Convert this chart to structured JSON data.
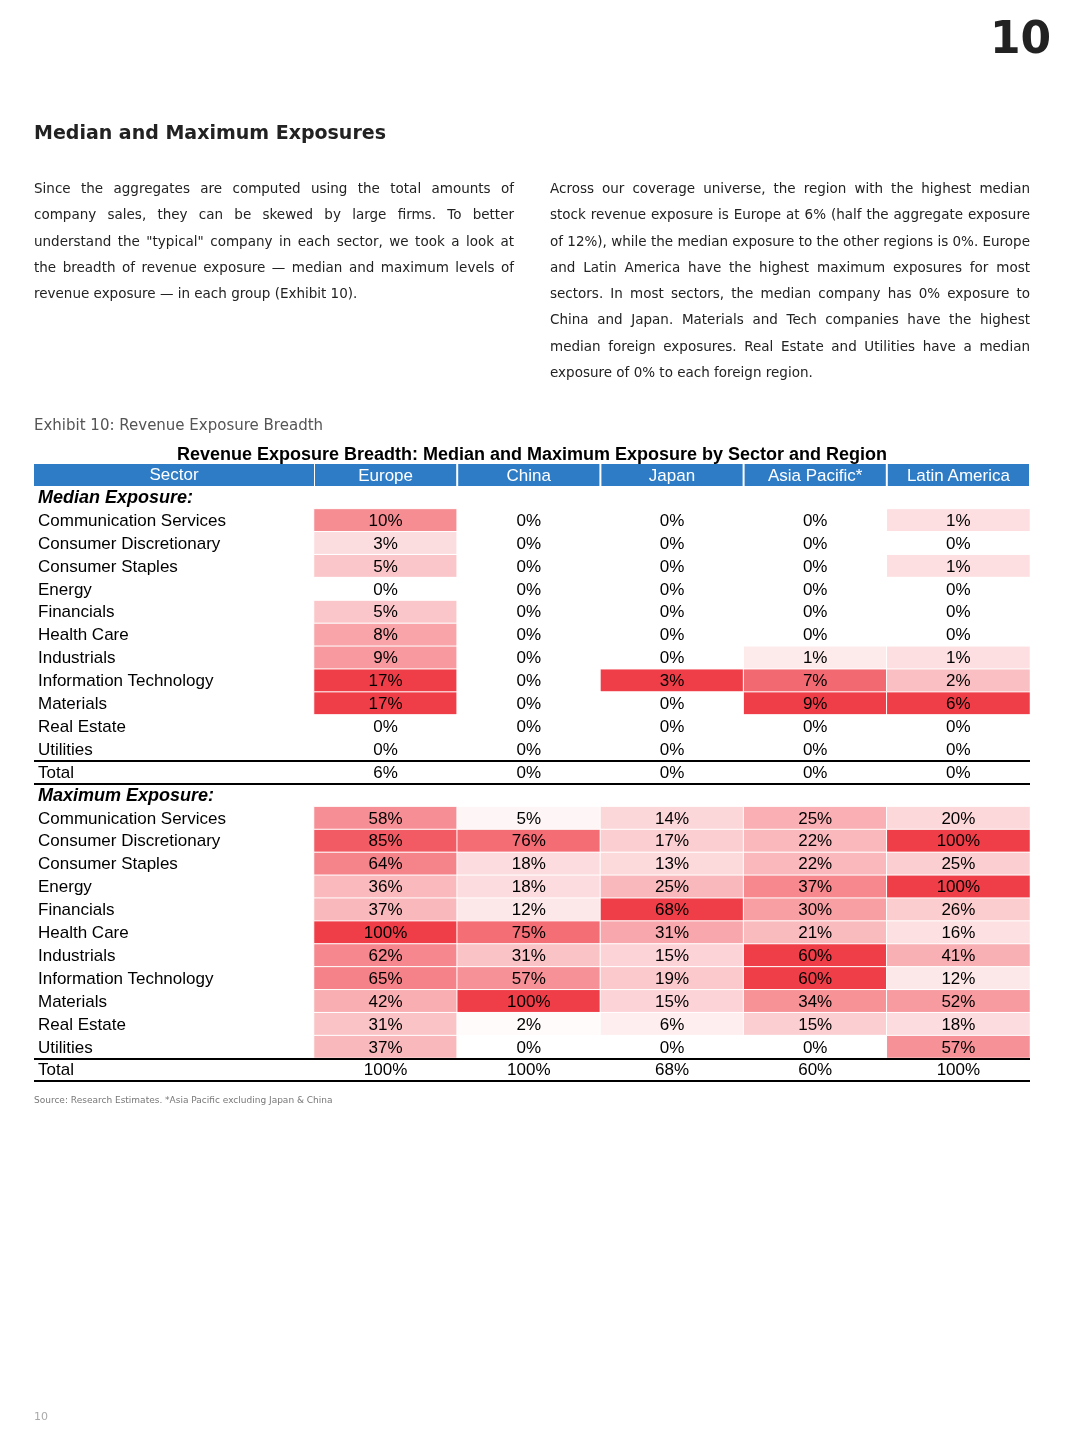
{
  "chart_data": {
    "type": "heatmap",
    "title": "Revenue Exposure Breadth: Median and Maximum Exposure by Sector and Region",
    "ylabel": "Sector",
    "annotations": [
      "Median and Maximum Exposures",
      "Since the aggregates are computed using the total amounts of company sales, they can be skewed by large firms. To better understand the \"typical\" company in each sector, we took a look at the breadth of revenue exposure — median and maximum levels of revenue exposure — in each group (Exhibit 10).",
      "Across our coverage universe, the region with the highest median stock revenue exposure is Europe at 6% (half the aggregate exposure of 12%), while the median exposure to the other regions is 0%. Europe and Latin America have the highest maximum exposures for most sectors. In most sectors, the median company has 0% exposure to China and Japan. Materials and Tech companies have the highest median foreign exposures. Real Estate and Utilities have a median exposure of 0% to each foreign region.",
      "Exhibit 10: Revenue Exposure Breadth",
      "Source: Research Estimates. *Asia Pacific excluding Japan & China",
      "10",
      "10"
    ],
    "categories": [
      "Europe",
      "China",
      "Japan",
      "Asia Pacific*",
      "Latin America"
    ],
    "y_categories": [
      "Median Exposure:",
      "Communication Services",
      "Consumer Discretionary",
      "Consumer Staples",
      "Energy",
      "Financials",
      "Health Care",
      "Industrials",
      "Information Technology",
      "Materials",
      "Real Estate",
      "Utilities",
      "Total",
      "Maximum Exposure:",
      "Communication Services",
      "Consumer Discretionary",
      "Consumer Staples",
      "Energy",
      "Financials",
      "Health Care",
      "Industrials",
      "Information Technology",
      "Materials",
      "Real Estate",
      "Utilities",
      "Total"
    ],
    "cells": [
      [
        null,
        null,
        null,
        null,
        null
      ],
      [
        10,
        0,
        0,
        0,
        1
      ],
      [
        3,
        0,
        0,
        0,
        0
      ],
      [
        5,
        0,
        0,
        0,
        1
      ],
      [
        0,
        0,
        0,
        0,
        0
      ],
      [
        5,
        0,
        0,
        0,
        0
      ],
      [
        8,
        0,
        0,
        0,
        0
      ],
      [
        9,
        0,
        0,
        1,
        1
      ],
      [
        17,
        0,
        3,
        7,
        2
      ],
      [
        17,
        0,
        0,
        9,
        6
      ],
      [
        0,
        0,
        0,
        0,
        0
      ],
      [
        0,
        0,
        0,
        0,
        0
      ],
      [
        6,
        0,
        0,
        0,
        0
      ],
      [
        null,
        null,
        null,
        null,
        null
      ],
      [
        58,
        5,
        14,
        25,
        20
      ],
      [
        85,
        76,
        17,
        22,
        100
      ],
      [
        64,
        18,
        13,
        22,
        25
      ],
      [
        36,
        18,
        25,
        37,
        100
      ],
      [
        37,
        12,
        68,
        30,
        26
      ],
      [
        100,
        75,
        31,
        21,
        16
      ],
      [
        62,
        31,
        15,
        60,
        41
      ],
      [
        65,
        57,
        19,
        60,
        12
      ],
      [
        42,
        100,
        15,
        34,
        52
      ],
      [
        31,
        2,
        6,
        15,
        18
      ],
      [
        37,
        0,
        0,
        0,
        57
      ],
      [
        100,
        100,
        68,
        60,
        100
      ]
    ],
    "cell_labels": [
      [
        null,
        null,
        null,
        null,
        null
      ],
      [
        "10%",
        "0%",
        "0%",
        "0%",
        "1%"
      ],
      [
        "3%",
        "0%",
        "0%",
        "0%",
        "0%"
      ],
      [
        "5%",
        "0%",
        "0%",
        "0%",
        "1%"
      ],
      [
        "0%",
        "0%",
        "0%",
        "0%",
        "0%"
      ],
      [
        "5%",
        "0%",
        "0%",
        "0%",
        "0%"
      ],
      [
        "8%",
        "0%",
        "0%",
        "0%",
        "0%"
      ],
      [
        "9%",
        "0%",
        "0%",
        "1%",
        "1%"
      ],
      [
        "17%",
        "0%",
        "3%",
        "7%",
        "2%"
      ],
      [
        "17%",
        "0%",
        "0%",
        "9%",
        "6%"
      ],
      [
        "0%",
        "0%",
        "0%",
        "0%",
        "0%"
      ],
      [
        "0%",
        "0%",
        "0%",
        "0%",
        "0%"
      ],
      [
        "6%",
        "0%",
        "0%",
        "0%",
        "0%"
      ],
      [
        null,
        null,
        null,
        null,
        null
      ],
      [
        "58%",
        "5%",
        "14%",
        "25%",
        "20%"
      ],
      [
        "85%",
        "76%",
        "17%",
        "22%",
        "100%"
      ],
      [
        "64%",
        "18%",
        "13%",
        "22%",
        "25%"
      ],
      [
        "36%",
        "18%",
        "25%",
        "37%",
        "100%"
      ],
      [
        "37%",
        "12%",
        "68%",
        "30%",
        "26%"
      ],
      [
        "100%",
        "75%",
        "31%",
        "21%",
        "16%"
      ],
      [
        "62%",
        "31%",
        "15%",
        "60%",
        "41%"
      ],
      [
        "65%",
        "57%",
        "19%",
        "60%",
        "12%"
      ],
      [
        "42%",
        "100%",
        "15%",
        "34%",
        "52%"
      ],
      [
        "31%",
        "2%",
        "6%",
        "15%",
        "18%"
      ],
      [
        "37%",
        "0%",
        "0%",
        "0%",
        "57%"
      ],
      [
        "100%",
        "100%",
        "68%",
        "60%",
        "100%"
      ]
    ]
  }
}
